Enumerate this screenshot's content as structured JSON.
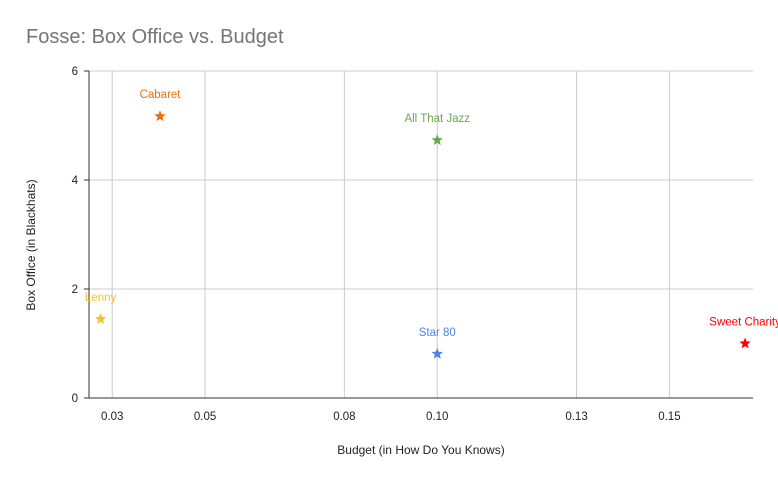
{
  "chart_data": {
    "type": "scatter",
    "title": "Fosse: Box Office vs. Budget",
    "xlabel": "Budget (in How Do You Knows)",
    "ylabel": "Box Office (in Blackhats)",
    "xlim": [
      0.025,
      0.168
    ],
    "ylim": [
      0,
      6
    ],
    "x_ticks": [
      0.03,
      0.05,
      0.08,
      0.1,
      0.13,
      0.15
    ],
    "x_tick_labels": [
      "0.03",
      "0.05",
      "0.08",
      "0.10",
      "0.13",
      "0.15"
    ],
    "y_ticks": [
      0,
      2,
      4,
      6
    ],
    "y_tick_labels": [
      "0",
      "2",
      "4",
      "6"
    ],
    "grid": true,
    "marker": "star",
    "points": [
      {
        "label": "Cabaret",
        "x": 0.0403,
        "y": 5.17,
        "color": "#e8710a"
      },
      {
        "label": "All That Jazz",
        "x": 0.1,
        "y": 4.73,
        "color": "#6aa84f"
      },
      {
        "label": "Lenny",
        "x": 0.0275,
        "y": 1.45,
        "color": "#f1c232"
      },
      {
        "label": "Star 80",
        "x": 0.1,
        "y": 0.81,
        "color": "#4a86e8"
      },
      {
        "label": "Sweet Charity",
        "x": 0.1663,
        "y": 1.0,
        "color": "#ff0000"
      }
    ]
  }
}
